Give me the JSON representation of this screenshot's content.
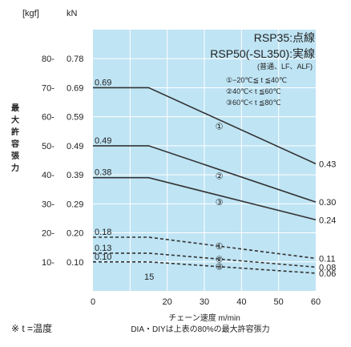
{
  "chart_data": {
    "type": "line",
    "units": {
      "left": "[kgf]",
      "right": "kN"
    },
    "xlabel": "チェーン速度 m/min",
    "ylabel": [
      "最",
      "大",
      "許",
      "容",
      "張",
      "力"
    ],
    "x_ticks": [
      0,
      20,
      30,
      40,
      50,
      60
    ],
    "x_extra_label": "15",
    "xlim": [
      0,
      60
    ],
    "ylim_kgf": [
      0,
      90
    ],
    "y_ticks": [
      {
        "kgf": "10-",
        "kn": "0.10",
        "v": 10
      },
      {
        "kgf": "20-",
        "kn": "0.20",
        "v": 20
      },
      {
        "kgf": "30-",
        "kn": "0.29",
        "v": 30
      },
      {
        "kgf": "40-",
        "kn": "0.39",
        "v": 40
      },
      {
        "kgf": "50-",
        "kn": "0.49",
        "v": 50
      },
      {
        "kgf": "60-",
        "kn": "0.59",
        "v": 60
      },
      {
        "kgf": "70-",
        "kn": "0.69",
        "v": 70
      },
      {
        "kgf": "80-",
        "kn": "0.78",
        "v": 80
      }
    ],
    "legend": {
      "line1": "RSP35:点線",
      "line2": "RSP50(-SL350):実線",
      "line3": "(普通、LF、ALF)",
      "conds": [
        "①−20℃≦ t ≦40℃",
        "②40℃< t ≦60℃",
        "③60℃< t ≦80℃"
      ]
    },
    "series": [
      {
        "style": "solid",
        "marker": "①",
        "x": [
          0,
          15,
          60
        ],
        "y": [
          70,
          70,
          43.8
        ],
        "label_start": "0.69",
        "label_end": "0.43"
      },
      {
        "style": "solid",
        "marker": "②",
        "x": [
          0,
          15,
          60
        ],
        "y": [
          50,
          50,
          30.6
        ],
        "label_start": "0.49",
        "label_end": "0.30"
      },
      {
        "style": "solid",
        "marker": "③",
        "x": [
          0,
          15,
          60
        ],
        "y": [
          39,
          39,
          24.5
        ],
        "label_start": "0.38",
        "label_end": "0.24"
      },
      {
        "style": "dashed",
        "marker": "①",
        "x": [
          0,
          15,
          60
        ],
        "y": [
          18.5,
          18.5,
          11.2
        ],
        "label_start": "0.18",
        "label_end": "0.11"
      },
      {
        "style": "dashed",
        "marker": "②",
        "x": [
          0,
          15,
          60
        ],
        "y": [
          13,
          13,
          8.2
        ],
        "label_start": "0.13",
        "label_end": "0.08"
      },
      {
        "style": "dashed",
        "marker": "③",
        "x": [
          0,
          15,
          60
        ],
        "y": [
          10,
          10,
          6.1
        ],
        "label_start": "0.10",
        "label_end": "0.06"
      }
    ],
    "colors": {
      "plot_bg": "#bfe4f4",
      "grid": "#ffffff",
      "line": "#333333"
    }
  },
  "footnote": {
    "temp": "※ t =温度",
    "dia": "DIA・DIYは上表の80%の最大許容張力"
  }
}
